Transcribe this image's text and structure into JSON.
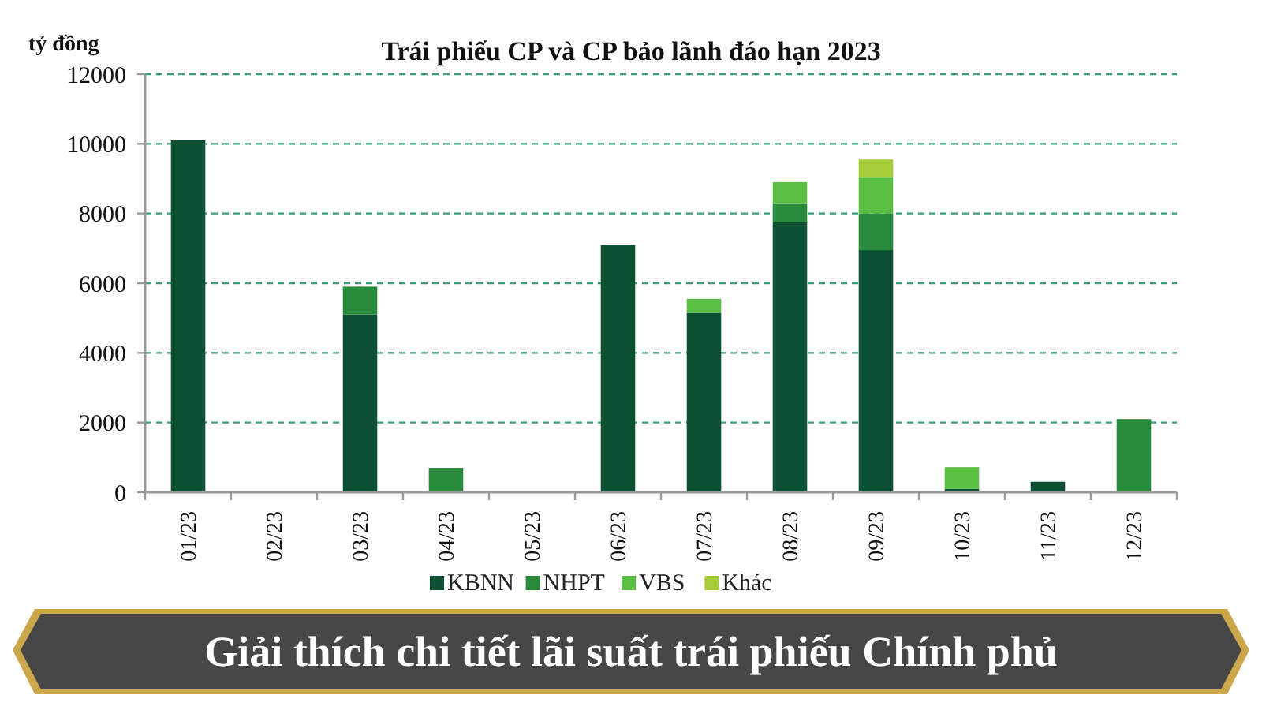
{
  "chart_data": {
    "type": "bar",
    "title": "Trái phiếu CP và CP bảo lãnh đáo hạn 2023",
    "ylabel": "tỷ đồng",
    "categories": [
      "01/23",
      "02/23",
      "03/23",
      "04/23",
      "05/23",
      "06/23",
      "07/23",
      "08/23",
      "09/23",
      "10/23",
      "11/23",
      "12/23"
    ],
    "series": [
      {
        "name": "KBNN",
        "color": "#0b5132",
        "values": [
          10100,
          null,
          5100,
          null,
          null,
          7100,
          5150,
          7750,
          6950,
          100,
          300,
          null
        ]
      },
      {
        "name": "NHPT",
        "color": "#2a8a3c",
        "values": [
          null,
          null,
          800,
          700,
          null,
          null,
          null,
          550,
          1050,
          null,
          null,
          2100
        ]
      },
      {
        "name": "VBS",
        "color": "#5cbf45",
        "values": [
          null,
          null,
          null,
          null,
          null,
          null,
          400,
          600,
          1050,
          620,
          null,
          null
        ]
      },
      {
        "name": "Khác",
        "color": "#a6cc3a",
        "values": [
          null,
          null,
          null,
          null,
          null,
          null,
          null,
          null,
          500,
          null,
          null,
          null
        ]
      }
    ],
    "stacked": true,
    "ylim": [
      0,
      12000
    ],
    "yticks": [
      0,
      2000,
      4000,
      6000,
      8000,
      10000,
      12000
    ],
    "grid": "y",
    "legend": "bottom",
    "annotations": [
      "Giải thích chi tiết lãi suất trái phiếu Chính phủ"
    ]
  }
}
